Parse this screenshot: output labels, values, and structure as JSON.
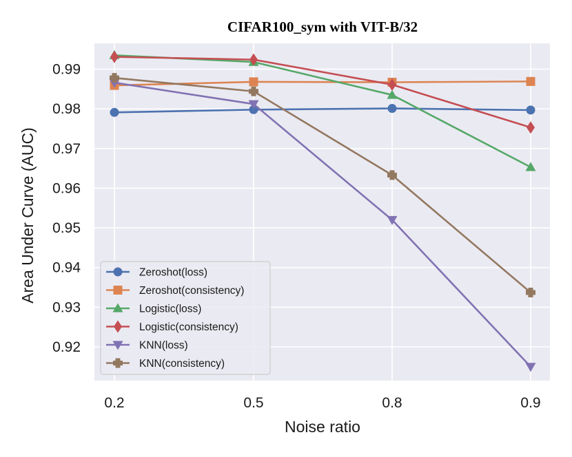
{
  "chart_data": {
    "type": "line",
    "title": "CIFAR100_sym with VIT-B/32",
    "xlabel": "Noise ratio",
    "ylabel": "Area Under Curve (AUC)",
    "categories": [
      "0.2",
      "0.5",
      "0.8",
      "0.9"
    ],
    "ylim": [
      0.9115,
      0.9965
    ],
    "yticks": [
      0.92,
      0.93,
      0.94,
      0.95,
      0.96,
      0.97,
      0.98,
      0.99
    ],
    "ytick_labels": [
      "0.92",
      "0.93",
      "0.94",
      "0.95",
      "0.96",
      "0.97",
      "0.98",
      "0.99"
    ],
    "grid": true,
    "background": "#eaeaf2",
    "legend_position": "lower-left",
    "series": [
      {
        "name": "Zeroshot(loss)",
        "color": "#4c72b0",
        "marker": "circle",
        "values": [
          0.9791,
          0.9798,
          0.9801,
          0.9797
        ]
      },
      {
        "name": "Zeroshot(consistency)",
        "color": "#dd8452",
        "marker": "square",
        "values": [
          0.9859,
          0.9868,
          0.9867,
          0.9869
        ]
      },
      {
        "name": "Logistic(loss)",
        "color": "#55a868",
        "marker": "triangle-up",
        "values": [
          0.9935,
          0.9918,
          0.9835,
          0.9653
        ]
      },
      {
        "name": "Logistic(consistency)",
        "color": "#c44e52",
        "marker": "diamond",
        "values": [
          0.9931,
          0.9924,
          0.9861,
          0.9753
        ]
      },
      {
        "name": "KNN(loss)",
        "color": "#8172b3",
        "marker": "triangle-down",
        "values": [
          0.9866,
          0.9812,
          0.952,
          0.915
        ]
      },
      {
        "name": "KNN(consistency)",
        "color": "#937860",
        "marker": "plus",
        "values": [
          0.9878,
          0.9844,
          0.9633,
          0.9337
        ]
      }
    ]
  }
}
